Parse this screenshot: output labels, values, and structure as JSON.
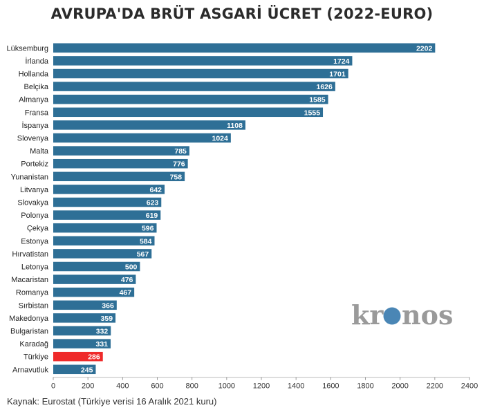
{
  "chart_data": {
    "type": "bar",
    "orientation": "horizontal",
    "title": "AVRUPA'DA BRÜT ASGARİ ÜCRET (2022-EURO)",
    "categories": [
      "Lüksemburg",
      "İrlanda",
      "Hollanda",
      "Belçika",
      "Almanya",
      "Fransa",
      "İspanya",
      "Slovenya",
      "Malta",
      "Portekiz",
      "Yunanistan",
      "Litvanya",
      "Slovakya",
      "Polonya",
      "Çekya",
      "Estonya",
      "Hırvatistan",
      "Letonya",
      "Macaristan",
      "Romanya",
      "Sırbistan",
      "Makedonya",
      "Bulgaristan",
      "Karadağ",
      "Türkiye",
      "Arnavutluk"
    ],
    "values": [
      2202,
      1724,
      1701,
      1626,
      1585,
      1555,
      1108,
      1024,
      785,
      776,
      758,
      642,
      623,
      619,
      596,
      584,
      567,
      500,
      476,
      467,
      366,
      359,
      332,
      331,
      286,
      245
    ],
    "xlim": [
      0,
      2400
    ],
    "xticks": [
      0,
      200,
      400,
      600,
      800,
      1000,
      1200,
      1400,
      1600,
      1800,
      2000,
      2200,
      2400
    ],
    "grid": false,
    "bar_color": "#2e6f96",
    "highlight_category": "Türkiye",
    "highlight_color": "#ef2a2a",
    "value_label_color": "#ffffff"
  },
  "source": "Kaynak: Eurostat (Türkiye verisi 16 Aralık 2021 kuru)",
  "watermark": {
    "before": "kr",
    "after": "nos",
    "color": "#9a9a9a",
    "dot_color": "#4a86b5"
  }
}
